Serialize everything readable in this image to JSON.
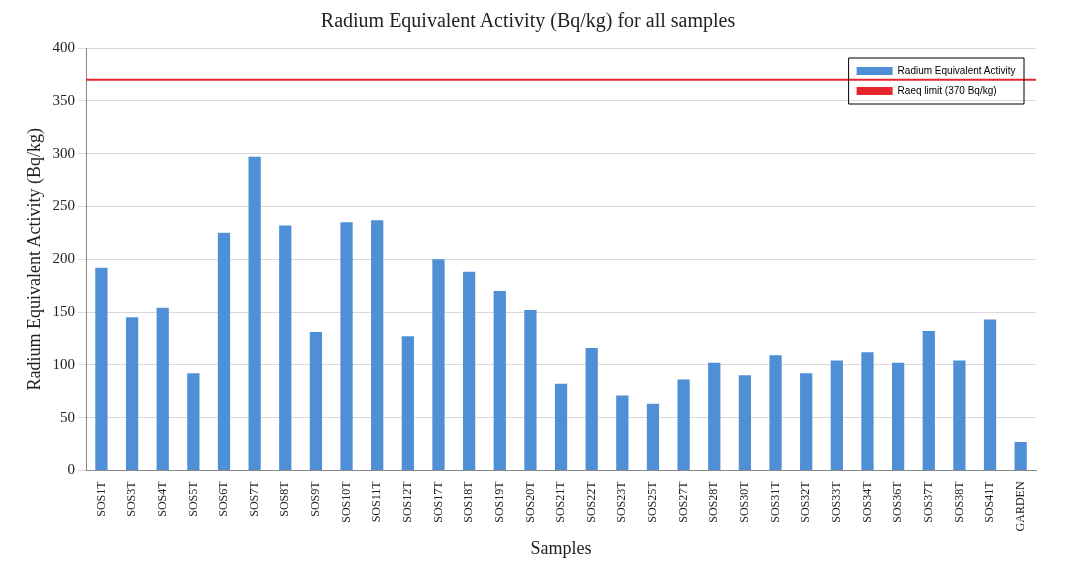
{
  "chart_data": {
    "type": "bar",
    "title": "Radium Equivalent Activity (Bq/kg) for all samples",
    "xlabel": "Samples",
    "ylabel": "Radium Equivalent Activity (Bq/kg)",
    "categories": [
      "SOS1T",
      "SOS3T",
      "SOS4T",
      "SOS5T",
      "SOS6T",
      "SOS7T",
      "SOS8T",
      "SOS9T",
      "SOS10T",
      "SOS11T",
      "SOS12T",
      "SOS17T",
      "SOS18T",
      "SOS19T",
      "SOS20T",
      "SOS21T",
      "SOS22T",
      "SOS23T",
      "SOS25T",
      "SOS27T",
      "SOS28T",
      "SOS30T",
      "SOS31T",
      "SOS32T",
      "SOS33T",
      "SOS34T",
      "SOS36T",
      "SOS37T",
      "SOS38T",
      "SOS41T",
      "GARDEN"
    ],
    "series": [
      {
        "name": "Radium Equivalent Activity",
        "color": "#4f8fd6",
        "values": [
          192,
          145,
          154,
          92,
          225,
          297,
          232,
          131,
          235,
          237,
          127,
          200,
          188,
          170,
          152,
          82,
          116,
          71,
          63,
          86,
          102,
          90,
          109,
          92,
          104,
          112,
          102,
          132,
          104,
          143,
          27
        ]
      }
    ],
    "ylim": [
      0,
      400
    ],
    "yticks": [
      0,
      50,
      100,
      150,
      200,
      250,
      300,
      350,
      400
    ],
    "grid": "y",
    "legend": "top right",
    "ref_lines": [
      {
        "axis": "y",
        "value": 370,
        "label": "Raeq limit (370 Bq/kg)",
        "color": "#e8242c"
      }
    ]
  }
}
